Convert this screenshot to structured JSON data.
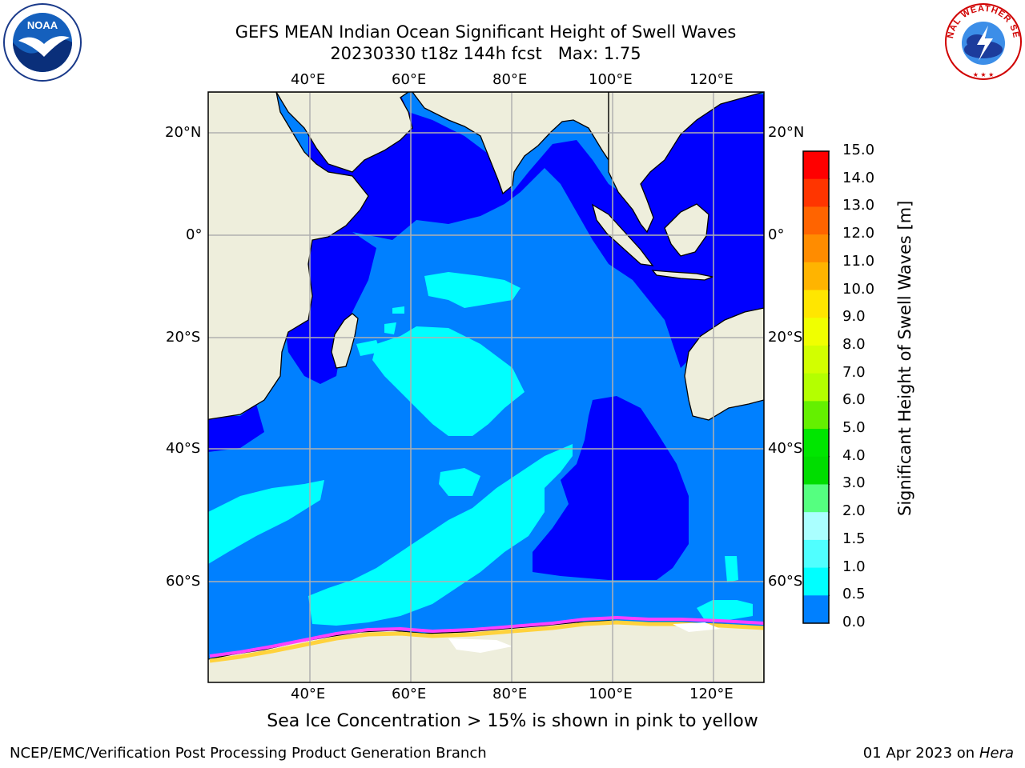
{
  "title": {
    "line1": "GEFS MEAN Indian Ocean Significant Height of Swell Waves",
    "line2": "20230330 t18z 144h fcst   Max: 1.75"
  },
  "map": {
    "lon_labels": [
      "40°E",
      "60°E",
      "80°E",
      "100°E",
      "120°E"
    ],
    "lat_labels": [
      "20°N",
      "0°",
      "20°S",
      "40°S",
      "60°S"
    ],
    "extent": {
      "lon_min": 20,
      "lon_max": 130,
      "lat_min": -76,
      "lat_max": 28
    },
    "colors": {
      "land": "#eeeedc",
      "ocean_0_0_5": "#0000ff",
      "ocean_0_5_1_0": "#0080ff",
      "ocean_1_0_1_5": "#00ffff",
      "ocean_1_5_2_0": "#40ffff",
      "sea_ice": "#ffffff",
      "grid": "#b0b0b0"
    }
  },
  "colorbar": {
    "label": "Significant Height of Swell Waves [m]",
    "ticks": [
      "15.0",
      "14.0",
      "13.0",
      "12.0",
      "11.0",
      "10.0",
      "9.0",
      "8.0",
      "7.0",
      "6.0",
      "5.0",
      "4.0",
      "3.0",
      "2.0",
      "1.5",
      "1.0",
      "0.5",
      "0.0"
    ],
    "colors": [
      "#ff0000",
      "#ff3500",
      "#ff6400",
      "#ff8c00",
      "#ffb400",
      "#ffe600",
      "#f0ff00",
      "#d2ff00",
      "#b4ff00",
      "#64f000",
      "#00e600",
      "#00dd00",
      "#55ff80",
      "#aaffff",
      "#50ffff",
      "#00ffff",
      "#0080ff",
      "#0000ff"
    ]
  },
  "caption": "Sea Ice Concentration > 15% is shown in pink to yellow",
  "footer": {
    "left": "NCEP/EMC/Verification Post Processing Product Generation Branch",
    "right_prefix": "01 Apr 2023 on ",
    "right_machine": "Hera"
  },
  "logos": {
    "left": "NOAA",
    "right": "NATIONAL WEATHER SERVICE"
  }
}
